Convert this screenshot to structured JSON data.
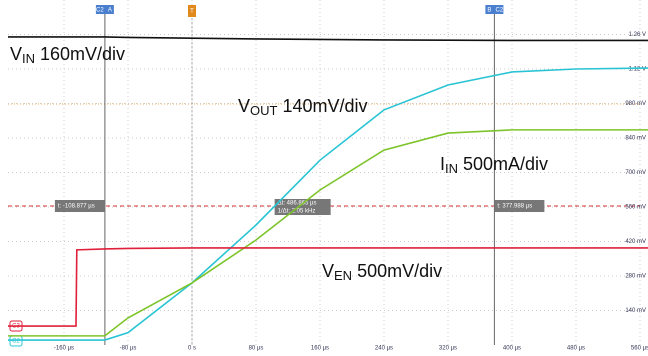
{
  "chart_data": {
    "type": "line",
    "x": [
      -230,
      -145,
      -144,
      -109,
      -80,
      0,
      80,
      160,
      240,
      320,
      400,
      480,
      570
    ],
    "series": [
      {
        "name": "VIN",
        "color": "#111111",
        "values": [
          1250,
          1250,
          1250,
          1250,
          1248,
          1245,
          1242,
          1240,
          1238,
          1237,
          1236,
          1236,
          1236
        ]
      },
      {
        "name": "VOUT",
        "color": "#29c4d4",
        "values": [
          20,
          20,
          20,
          20,
          50,
          252,
          487,
          750,
          954,
          1055,
          1108,
          1120,
          1124
        ]
      },
      {
        "name": "IIN",
        "color": "#7dc42a",
        "values": [
          37,
          37,
          37,
          37,
          110,
          252,
          426,
          629,
          791,
          860,
          873,
          873,
          873
        ]
      },
      {
        "name": "VEN",
        "color": "#e0203a",
        "values": [
          77,
          77,
          386,
          390,
          392,
          394,
          394,
          394,
          394,
          394,
          394,
          394,
          394
        ]
      }
    ],
    "annotations": [
      {
        "v": "V",
        "sub": "IN",
        "scale": " 160mV/div"
      },
      {
        "v": "V",
        "sub": "OUT",
        "scale": " 140mV/div"
      },
      {
        "v": "I",
        "sub": "IN",
        "scale": " 500mA/div"
      },
      {
        "v": "V",
        "sub": "EN",
        "scale": " 500mV/div"
      }
    ],
    "xlim": [
      -230,
      570
    ],
    "ylim": [
      0,
      1400
    ],
    "xticks": [
      {
        "value": -160,
        "label": "-160 µs"
      },
      {
        "value": -80,
        "label": "-80 µs"
      },
      {
        "value": 0,
        "label": "0 s"
      },
      {
        "value": 80,
        "label": "80 µs"
      },
      {
        "value": 160,
        "label": "160 µs"
      },
      {
        "value": 240,
        "label": "240 µs"
      },
      {
        "value": 320,
        "label": "320 µs"
      },
      {
        "value": 400,
        "label": "400 µs"
      },
      {
        "value": 480,
        "label": "480 µs"
      },
      {
        "value": 560,
        "label": "560 µs"
      }
    ],
    "yticks": [
      {
        "value": 140,
        "label": "140 mV"
      },
      {
        "value": 280,
        "label": "280 mV"
      },
      {
        "value": 420,
        "label": "420 mV"
      },
      {
        "value": 560,
        "label": "560 mV"
      },
      {
        "value": 700,
        "label": "700 mV"
      },
      {
        "value": 840,
        "label": "840 mV"
      },
      {
        "value": 980,
        "label": "980 mV"
      },
      {
        "value": 1120,
        "label": "1.12 V"
      },
      {
        "value": 1260,
        "label": "1.26 V"
      }
    ],
    "grid": true,
    "cursors": [
      {
        "x": -108.877,
        "label": "t: -108.877 µs",
        "tag": "C2",
        "name": "A"
      },
      {
        "x": 377.988,
        "label": "t: 377.988 µs",
        "tag": "C2",
        "name": "B"
      }
    ],
    "delta": {
      "dt": "Δt: 486.865 µs",
      "freq": "1/Δt: 2.05 kHz"
    },
    "trigger": "T",
    "channel_tags": [
      "C3",
      "C2"
    ]
  }
}
